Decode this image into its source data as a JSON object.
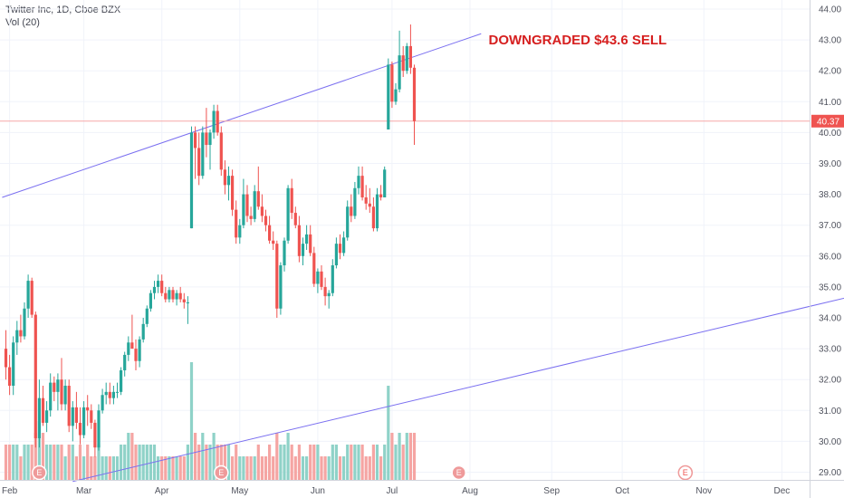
{
  "legend": {
    "symbol": "Twitter Inc, 1D, Cboe BZX",
    "volume": "Vol (20)"
  },
  "annotation": {
    "text": "DOWNGRADED $43.6 SELL"
  },
  "colors": {
    "up": "#26a69a",
    "down": "#ef5350",
    "vol_up": "#8fd2c8",
    "vol_down": "#f5a5a3",
    "trendline": "#7a6ff0",
    "price_line": "#f7a8a8",
    "price_tag": "#ef5350",
    "earnings_border": "#ef9a9a",
    "annotation": "#d61f1f"
  },
  "chart_data": {
    "type": "candlestick",
    "title": "Twitter Inc, 1D, Cboe BZX",
    "ylim": [
      28.7,
      44.2
    ],
    "y_ticks": [
      "29.00",
      "30.00",
      "31.00",
      "32.00",
      "33.00",
      "34.00",
      "35.00",
      "36.00",
      "37.00",
      "38.00",
      "39.00",
      "40.00",
      "41.00",
      "42.00",
      "43.00",
      "44.00"
    ],
    "x_ticks": [
      {
        "label": "Feb",
        "index": 1
      },
      {
        "label": "Mar",
        "index": 21
      },
      {
        "label": "Apr",
        "index": 42
      },
      {
        "label": "May",
        "index": 63
      },
      {
        "label": "Jun",
        "index": 84
      },
      {
        "label": "Jul",
        "index": 104
      },
      {
        "label": "Aug",
        "index": 125
      },
      {
        "label": "Sep",
        "index": 147
      },
      {
        "label": "Oct",
        "index": 166
      },
      {
        "label": "Nov",
        "index": 188
      },
      {
        "label": "Dec",
        "index": 209
      }
    ],
    "last_price": "40.37",
    "last_value": 40.37,
    "earnings_markers": [
      {
        "label": "E",
        "index": 9,
        "style": "past"
      },
      {
        "label": "E",
        "index": 58,
        "style": "past"
      },
      {
        "label": "E",
        "index": 122,
        "style": "past"
      },
      {
        "label": "E",
        "index": 183,
        "style": "future"
      }
    ],
    "trendlines": [
      {
        "from": {
          "index": -1,
          "value": 37.9
        },
        "to": {
          "index": 128,
          "value": 43.2
        }
      },
      {
        "from": {
          "index": 18,
          "value": 28.7
        },
        "to": {
          "index": 228,
          "value": 34.7
        }
      }
    ],
    "annotation_anchor": {
      "index": 130,
      "value": 43.0
    },
    "volume_max": 10,
    "candles": [
      [
        33.0,
        33.6,
        32.0,
        32.4,
        3
      ],
      [
        32.4,
        32.8,
        31.5,
        31.8,
        3
      ],
      [
        31.8,
        33.4,
        31.5,
        33.2,
        3
      ],
      [
        33.2,
        33.9,
        32.8,
        33.6,
        3
      ],
      [
        33.6,
        34.1,
        33.2,
        33.4,
        2
      ],
      [
        33.4,
        34.5,
        33.3,
        34.3,
        3
      ],
      [
        34.3,
        35.4,
        34.0,
        35.2,
        3
      ],
      [
        35.2,
        35.3,
        34.0,
        34.1,
        3
      ],
      [
        34.1,
        34.2,
        29.8,
        30.1,
        4
      ],
      [
        30.1,
        32.0,
        29.8,
        31.4,
        5
      ],
      [
        31.4,
        31.8,
        30.5,
        30.6,
        4
      ],
      [
        30.6,
        31.3,
        30.3,
        31.0,
        3
      ],
      [
        31.0,
        32.2,
        30.8,
        31.9,
        3
      ],
      [
        31.9,
        32.1,
        31.3,
        31.6,
        3
      ],
      [
        31.6,
        32.2,
        31.0,
        32.0,
        3
      ],
      [
        32.0,
        32.7,
        31.0,
        31.2,
        3
      ],
      [
        31.2,
        32.0,
        31.0,
        31.8,
        2
      ],
      [
        31.8,
        32.0,
        30.3,
        30.5,
        3
      ],
      [
        30.5,
        31.3,
        30.0,
        31.1,
        3
      ],
      [
        31.1,
        31.6,
        30.4,
        30.6,
        2
      ],
      [
        30.6,
        31.1,
        29.9,
        30.2,
        3
      ],
      [
        30.2,
        31.3,
        30.1,
        31.1,
        2
      ],
      [
        31.1,
        31.5,
        30.5,
        31.0,
        3
      ],
      [
        31.0,
        31.2,
        30.4,
        30.6,
        2
      ],
      [
        30.6,
        30.7,
        29.5,
        29.8,
        2
      ],
      [
        29.8,
        31.2,
        29.7,
        31.0,
        3
      ],
      [
        31.0,
        31.7,
        30.9,
        31.5,
        2
      ],
      [
        31.5,
        31.9,
        31.2,
        31.6,
        2
      ],
      [
        31.6,
        31.9,
        31.2,
        31.4,
        2
      ],
      [
        31.4,
        31.8,
        31.2,
        31.6,
        2
      ],
      [
        31.6,
        31.9,
        31.4,
        31.6,
        2
      ],
      [
        31.6,
        32.4,
        31.5,
        32.3,
        3
      ],
      [
        32.3,
        32.9,
        32.1,
        32.8,
        3
      ],
      [
        32.8,
        33.4,
        32.6,
        33.2,
        4
      ],
      [
        33.2,
        34.1,
        33.0,
        33.0,
        4
      ],
      [
        33.0,
        33.3,
        32.3,
        32.6,
        3
      ],
      [
        32.6,
        33.4,
        32.4,
        33.3,
        3
      ],
      [
        33.3,
        34.0,
        33.2,
        33.8,
        3
      ],
      [
        33.8,
        34.4,
        33.7,
        34.3,
        3
      ],
      [
        34.3,
        34.9,
        34.2,
        34.8,
        3
      ],
      [
        34.8,
        35.2,
        34.6,
        35.0,
        3
      ],
      [
        35.0,
        35.4,
        34.8,
        35.2,
        2
      ],
      [
        35.2,
        35.4,
        34.7,
        34.8,
        2
      ],
      [
        34.8,
        35.0,
        34.5,
        34.6,
        2
      ],
      [
        34.6,
        35.0,
        34.5,
        34.9,
        2
      ],
      [
        34.9,
        35.0,
        34.5,
        34.6,
        2
      ],
      [
        34.6,
        34.9,
        34.4,
        34.8,
        2
      ],
      [
        34.8,
        35.0,
        34.5,
        34.6,
        2
      ],
      [
        34.6,
        34.8,
        34.3,
        34.5,
        2
      ],
      [
        34.5,
        34.7,
        33.8,
        34.5,
        3
      ],
      [
        36.9,
        40.2,
        36.9,
        40.0,
        10
      ],
      [
        40.0,
        40.2,
        38.5,
        39.5,
        4
      ],
      [
        39.5,
        40.0,
        38.3,
        38.6,
        3
      ],
      [
        38.6,
        40.2,
        38.5,
        40.0,
        4
      ],
      [
        40.0,
        40.8,
        39.2,
        39.6,
        3
      ],
      [
        39.6,
        40.1,
        38.8,
        40.0,
        3
      ],
      [
        40.0,
        40.9,
        39.8,
        40.7,
        4
      ],
      [
        40.7,
        40.9,
        39.9,
        40.0,
        3
      ],
      [
        40.0,
        40.2,
        38.6,
        38.8,
        3
      ],
      [
        38.8,
        39.1,
        38.0,
        38.3,
        3
      ],
      [
        38.3,
        38.9,
        37.8,
        38.6,
        3
      ],
      [
        38.6,
        38.8,
        37.3,
        37.5,
        2
      ],
      [
        37.5,
        37.8,
        36.4,
        36.6,
        3
      ],
      [
        36.6,
        37.2,
        36.4,
        37.0,
        2
      ],
      [
        37.0,
        38.5,
        36.9,
        38.0,
        2
      ],
      [
        38.0,
        38.3,
        37.1,
        37.3,
        2
      ],
      [
        37.3,
        37.6,
        37.0,
        37.2,
        2
      ],
      [
        37.2,
        38.3,
        37.1,
        38.1,
        2
      ],
      [
        38.1,
        38.9,
        37.5,
        37.6,
        3
      ],
      [
        37.6,
        38.0,
        37.1,
        37.3,
        2
      ],
      [
        37.3,
        37.5,
        36.8,
        37.0,
        2
      ],
      [
        37.0,
        37.3,
        36.4,
        36.5,
        3
      ],
      [
        36.5,
        36.8,
        36.2,
        36.4,
        2
      ],
      [
        36.4,
        36.5,
        34.0,
        34.3,
        4
      ],
      [
        34.3,
        35.8,
        34.1,
        35.7,
        3
      ],
      [
        35.7,
        36.6,
        35.5,
        36.5,
        3
      ],
      [
        36.5,
        38.3,
        36.4,
        38.2,
        4
      ],
      [
        38.2,
        38.5,
        37.2,
        37.4,
        3
      ],
      [
        37.4,
        37.6,
        36.9,
        37.0,
        2
      ],
      [
        37.0,
        37.3,
        35.8,
        36.0,
        3
      ],
      [
        36.0,
        36.6,
        35.7,
        36.4,
        2
      ],
      [
        36.4,
        37.0,
        36.2,
        36.7,
        2
      ],
      [
        36.7,
        37.0,
        36.0,
        36.1,
        3
      ],
      [
        36.1,
        36.3,
        35.0,
        35.1,
        3
      ],
      [
        35.1,
        35.6,
        34.8,
        35.5,
        3
      ],
      [
        35.5,
        35.7,
        34.9,
        35.0,
        2
      ],
      [
        35.0,
        35.3,
        34.4,
        34.7,
        2
      ],
      [
        34.7,
        34.9,
        34.3,
        34.8,
        2
      ],
      [
        34.8,
        35.9,
        34.7,
        35.7,
        3
      ],
      [
        35.7,
        36.6,
        35.6,
        36.4,
        3
      ],
      [
        36.4,
        36.7,
        35.9,
        36.1,
        2
      ],
      [
        36.1,
        36.8,
        36.0,
        36.6,
        2
      ],
      [
        36.6,
        37.8,
        36.5,
        37.6,
        3
      ],
      [
        37.6,
        38.0,
        37.1,
        37.3,
        3
      ],
      [
        37.3,
        38.4,
        37.2,
        38.2,
        3
      ],
      [
        38.2,
        38.9,
        38.0,
        38.6,
        3
      ],
      [
        38.6,
        38.9,
        37.8,
        37.9,
        3
      ],
      [
        37.9,
        38.3,
        37.5,
        37.7,
        2
      ],
      [
        37.7,
        38.2,
        37.4,
        37.6,
        2
      ],
      [
        37.6,
        37.9,
        36.8,
        36.9,
        3
      ],
      [
        36.9,
        38.2,
        36.8,
        38.0,
        3
      ],
      [
        38.0,
        38.3,
        37.8,
        37.9,
        2
      ],
      [
        37.9,
        38.9,
        37.9,
        38.8,
        3
      ],
      [
        40.1,
        42.4,
        40.1,
        42.2,
        8
      ],
      [
        42.2,
        42.3,
        40.8,
        41.0,
        4
      ],
      [
        41.0,
        41.6,
        40.9,
        41.4,
        3
      ],
      [
        41.4,
        43.3,
        41.3,
        42.5,
        4
      ],
      [
        42.5,
        42.8,
        41.8,
        42.0,
        3
      ],
      [
        42.0,
        42.9,
        41.9,
        42.8,
        4
      ],
      [
        42.8,
        43.5,
        41.9,
        42.1,
        4
      ],
      [
        42.1,
        42.2,
        39.6,
        40.37,
        4
      ]
    ]
  }
}
